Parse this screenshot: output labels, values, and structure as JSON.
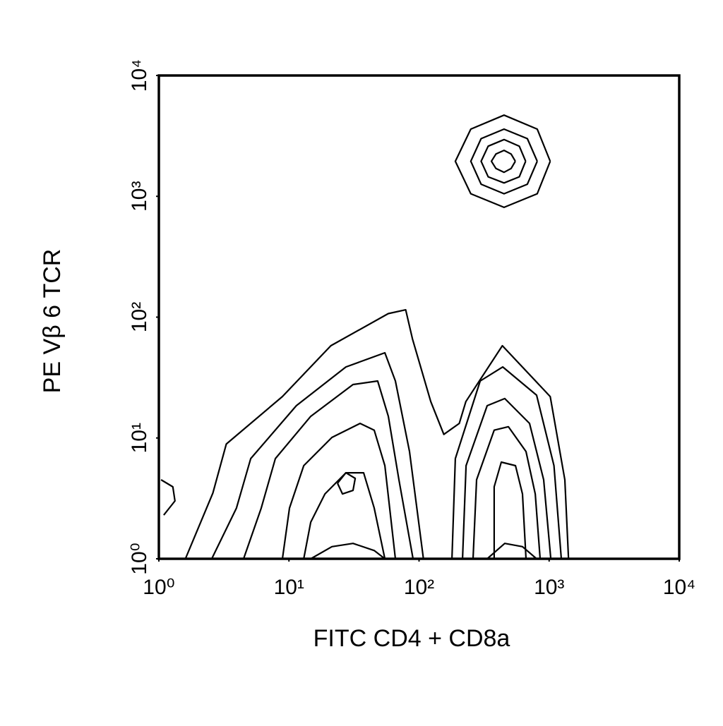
{
  "chart_data": {
    "type": "contour",
    "xlabel": "FITC CD4 + CD8a",
    "ylabel": "PE Vβ 6 TCR",
    "xscale": "log",
    "yscale": "log",
    "xlim": [
      1,
      10000
    ],
    "ylim": [
      1,
      10000
    ],
    "xticks": [
      {
        "value": 1,
        "label": "10⁰"
      },
      {
        "value": 10,
        "label": "10¹"
      },
      {
        "value": 100,
        "label": "10²"
      },
      {
        "value": 1000,
        "label": "10³"
      },
      {
        "value": 10000,
        "label": "10⁴"
      }
    ],
    "yticks": [
      {
        "value": 1,
        "label": "10⁰"
      },
      {
        "value": 10,
        "label": "10¹"
      },
      {
        "value": 100,
        "label": "10²"
      },
      {
        "value": 1000,
        "label": "10³"
      },
      {
        "value": 10000,
        "label": "10⁴"
      }
    ],
    "color": "#000000",
    "contours": [
      {
        "x": [
          1020,
          810,
          450,
          250,
          190,
          250,
          450,
          810,
          1020
        ],
        "y": [
          1950,
          3600,
          4700,
          3600,
          1950,
          1050,
          810,
          1050,
          1950
        ]
      },
      {
        "x": [
          810,
          680,
          450,
          300,
          250,
          300,
          450,
          680,
          810
        ],
        "y": [
          1950,
          3000,
          3600,
          3000,
          1950,
          1260,
          1050,
          1260,
          1950
        ]
      },
      {
        "x": [
          660,
          590,
          450,
          340,
          300,
          340,
          450,
          590,
          660
        ],
        "y": [
          1950,
          2600,
          2950,
          2600,
          1950,
          1450,
          1290,
          1450,
          1950
        ]
      },
      {
        "x": [
          550,
          510,
          450,
          390,
          360,
          390,
          450,
          510,
          550
        ],
        "y": [
          1950,
          2240,
          2400,
          2240,
          1950,
          1700,
          1580,
          1700,
          1950
        ]
      },
      {
        "x": [
          1.6,
          2.6,
          3.3,
          8.9,
          21,
          58,
          79,
          89,
          123,
          155,
          204,
          229,
          437,
          1020,
          1320,
          1410
        ],
        "y": [
          1,
          3.5,
          8.9,
          22,
          58,
          107,
          115,
          66,
          20,
          10.7,
          13.2,
          20,
          58,
          22,
          4.5,
          1
        ]
      },
      {
        "x": [
          2.55,
          3.95,
          5.08,
          11.4,
          27.4,
          54.6,
          65.8,
          84.5,
          108
        ],
        "y": [
          1,
          2.63,
          6.75,
          18.5,
          38.7,
          50.7,
          29.6,
          7.72,
          1
        ]
      },
      {
        "x": [
          4.48,
          6.12,
          7.86,
          14.7,
          31.1,
          48.1,
          58.1,
          70.0,
          89.9
        ],
        "y": [
          1,
          2.63,
          6.75,
          15.1,
          27.7,
          29.6,
          15.1,
          4.51,
          1
        ]
      },
      {
        "x": [
          8.91,
          10.1,
          13.0,
          21.4,
          35.2,
          45.2,
          54.6,
          65.8
        ],
        "y": [
          1,
          2.63,
          5.9,
          10.1,
          13.2,
          11.6,
          5.9,
          1
        ]
      },
      {
        "x": [
          13.0,
          14.7,
          18.9,
          27.4,
          37.5,
          45.2,
          54.6
        ],
        "y": [
          1,
          2.01,
          3.44,
          5.15,
          5.15,
          2.63,
          1
        ]
      },
      {
        "x": [
          23.6,
          27.4,
          32.3,
          31.1,
          25.8,
          23.6
        ],
        "y": [
          4.22,
          5.15,
          4.63,
          3.68,
          3.44,
          4.22
        ]
      },
      {
        "x": [
          14.7,
          21.4,
          31.1,
          45.2,
          54.6
        ],
        "y": [
          1,
          1.26,
          1.34,
          1.17,
          1
        ]
      },
      {
        "x": [
          179,
          190,
          295,
          440,
          801,
          1090,
          1240
        ],
        "y": [
          1,
          6.75,
          29.6,
          38.7,
          22.6,
          5.9,
          1
        ]
      },
      {
        "x": [
          216,
          230,
          334,
          456,
          707,
          908,
          1030
        ],
        "y": [
          1,
          5.9,
          18.5,
          21.2,
          13.2,
          4.51,
          1
        ]
      },
      {
        "x": [
          260,
          277,
          378,
          486,
          664,
          782,
          853
        ],
        "y": [
          1,
          4.51,
          11.6,
          12.4,
          7.72,
          3.44,
          1
        ]
      },
      {
        "x": [
          378,
          378,
          429,
          551,
          624,
          664
        ],
        "y": [
          1,
          3.94,
          6.31,
          5.9,
          3.44,
          1
        ]
      },
      {
        "x": [
          334,
          456,
          624,
          801
        ],
        "y": [
          1,
          1.34,
          1.26,
          1
        ]
      },
      {
        "x": [
          1.04,
          1.28,
          1.33,
          1.09
        ],
        "y": [
          4.51,
          3.94,
          3.01,
          2.3
        ]
      }
    ]
  }
}
